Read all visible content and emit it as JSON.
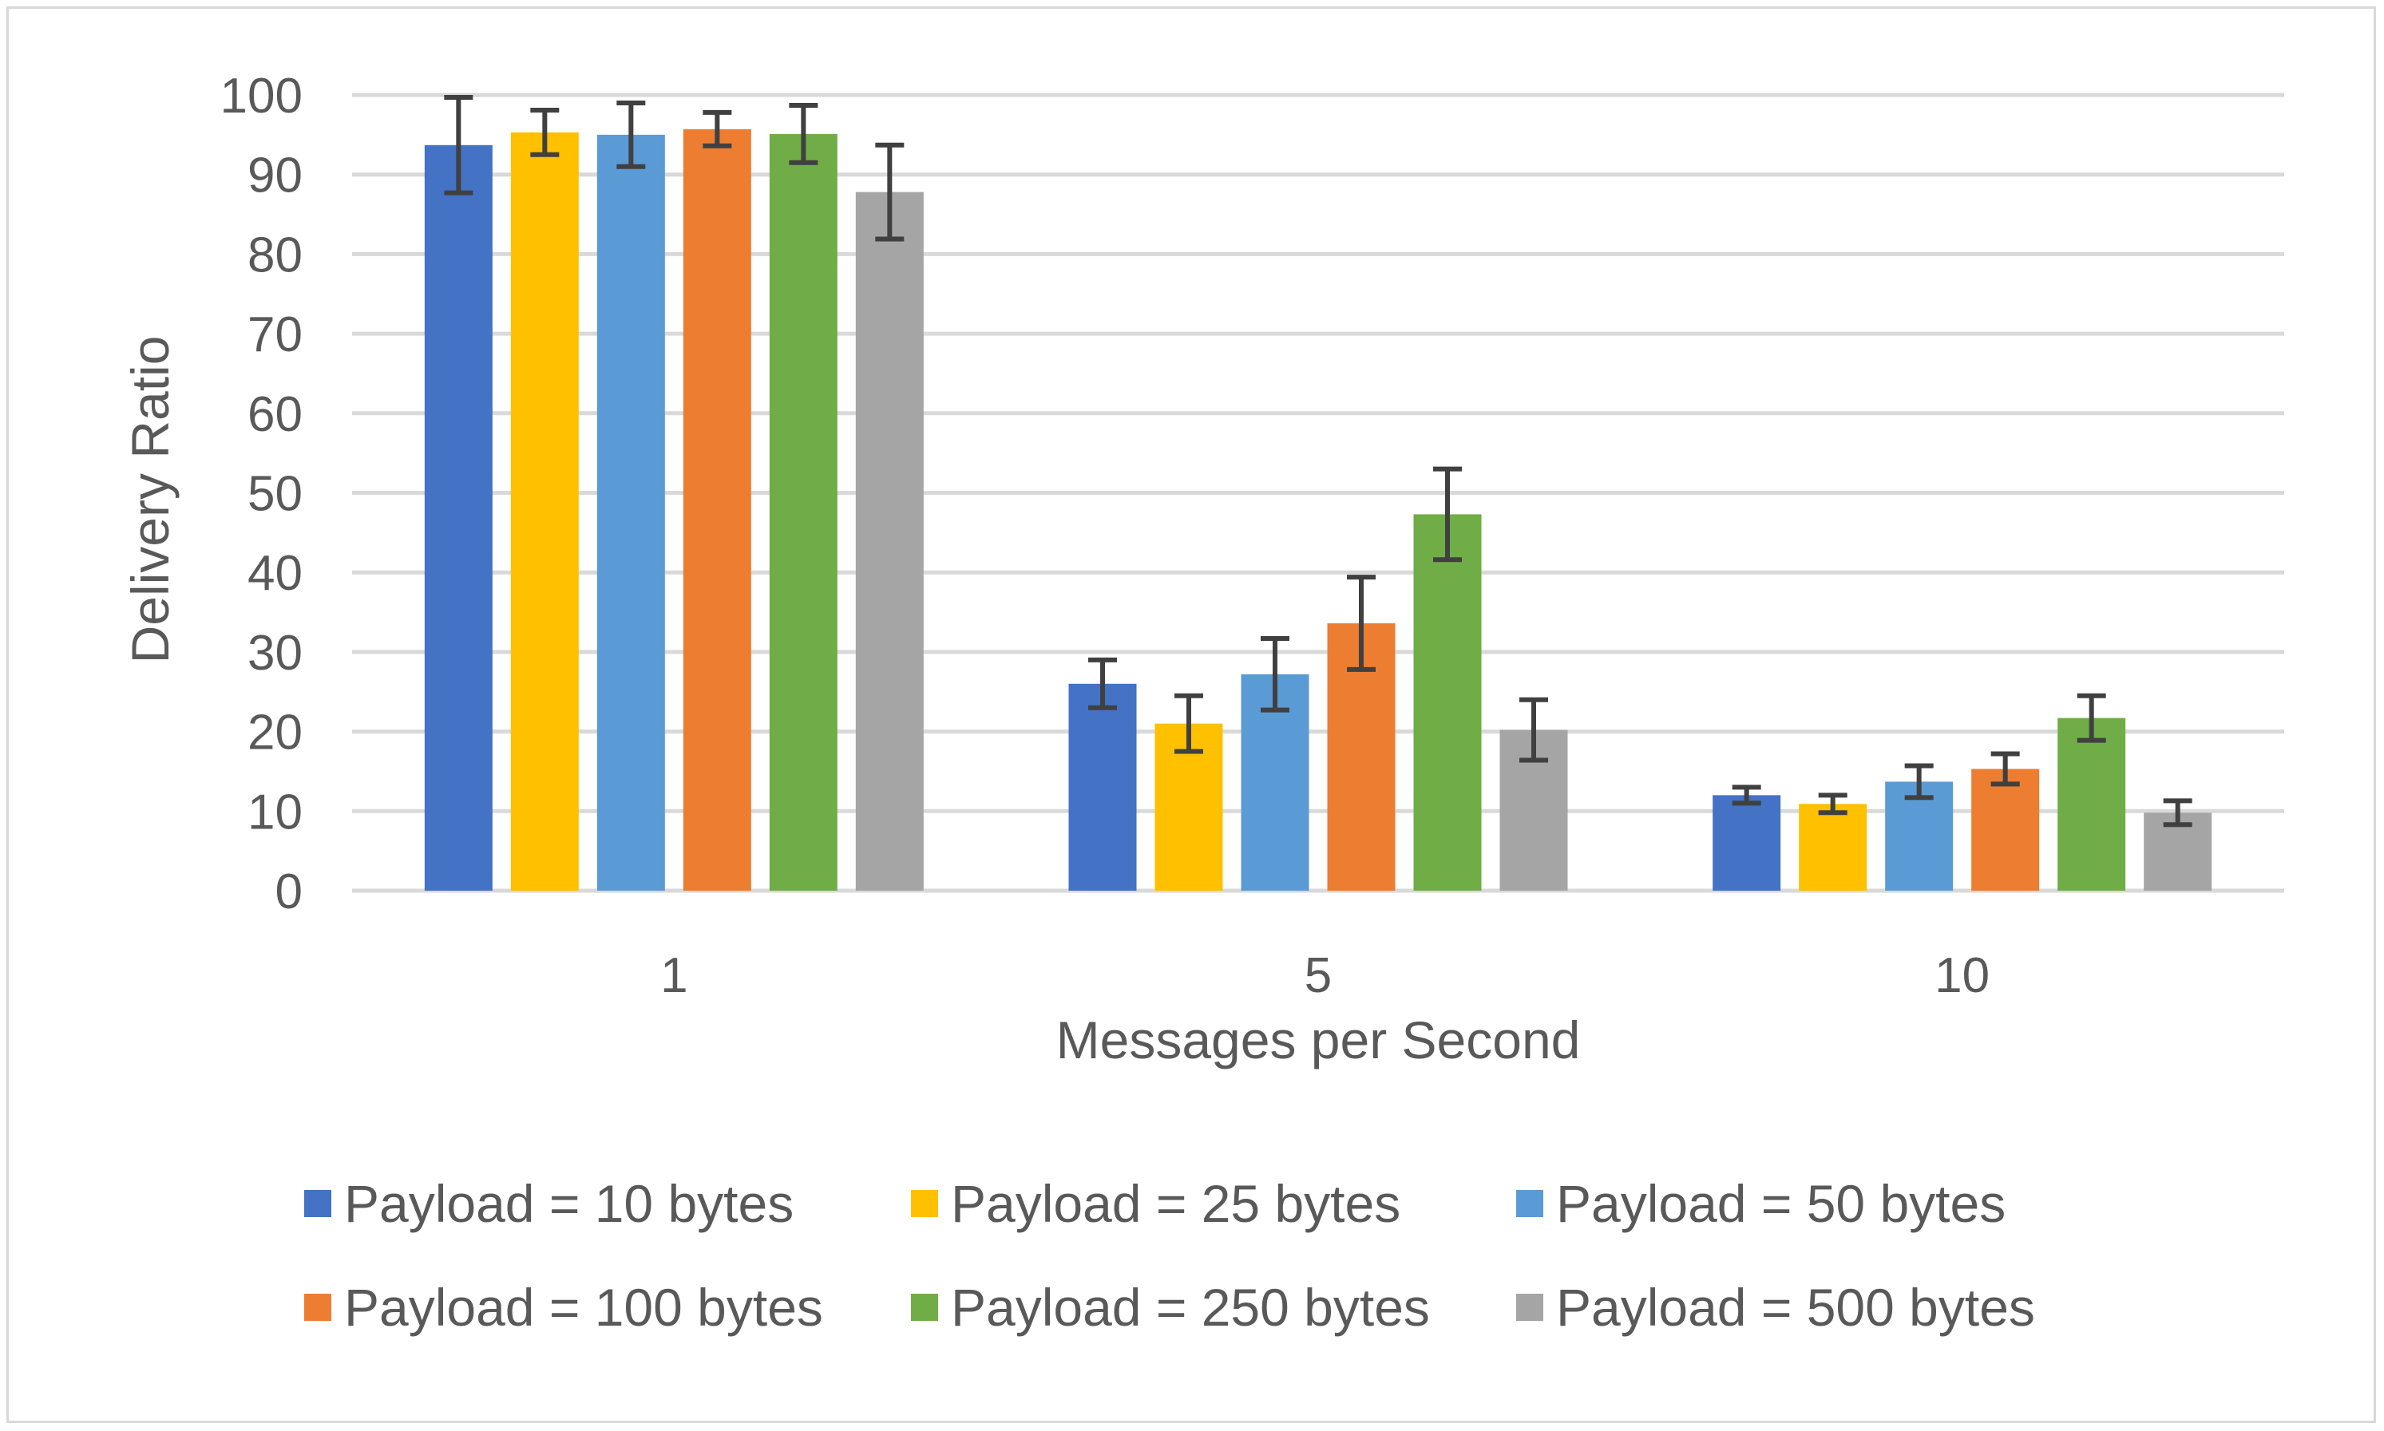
{
  "chart_data": {
    "type": "bar",
    "categories": [
      "1",
      "5",
      "10"
    ],
    "xlabel": "Messages per Second",
    "ylabel": "Delivery Ratio",
    "ylim": [
      0,
      100
    ],
    "yticks": [
      "0",
      "10",
      "20",
      "30",
      "40",
      "50",
      "60",
      "70",
      "80",
      "90",
      "100"
    ],
    "grid": true,
    "legend_position": "bottom",
    "series": [
      {
        "name": "Payload = 10 bytes",
        "color": "#4472c4",
        "values": [
          93.7,
          26.0,
          12.0
        ],
        "error": [
          6.0,
          3.0,
          1.0
        ]
      },
      {
        "name": "Payload = 25 bytes",
        "color": "#ffc000",
        "values": [
          95.3,
          21.0,
          10.9
        ],
        "error": [
          2.8,
          3.5,
          1.1
        ]
      },
      {
        "name": "Payload = 50 bytes",
        "color": "#5b9bd5",
        "values": [
          95.0,
          27.2,
          13.7
        ],
        "error": [
          4.0,
          4.5,
          2.0
        ]
      },
      {
        "name": "Payload = 100 bytes",
        "color": "#ed7d31",
        "values": [
          95.7,
          33.6,
          15.3
        ],
        "error": [
          2.1,
          5.8,
          1.9
        ]
      },
      {
        "name": "Payload = 250 bytes",
        "color": "#70ad47",
        "values": [
          95.1,
          47.3,
          21.7
        ],
        "error": [
          3.6,
          5.7,
          2.8
        ]
      },
      {
        "name": "Payload = 500 bytes",
        "color": "#a5a5a5",
        "values": [
          87.8,
          20.2,
          9.8
        ],
        "error": [
          5.9,
          3.8,
          1.5
        ]
      }
    ]
  }
}
